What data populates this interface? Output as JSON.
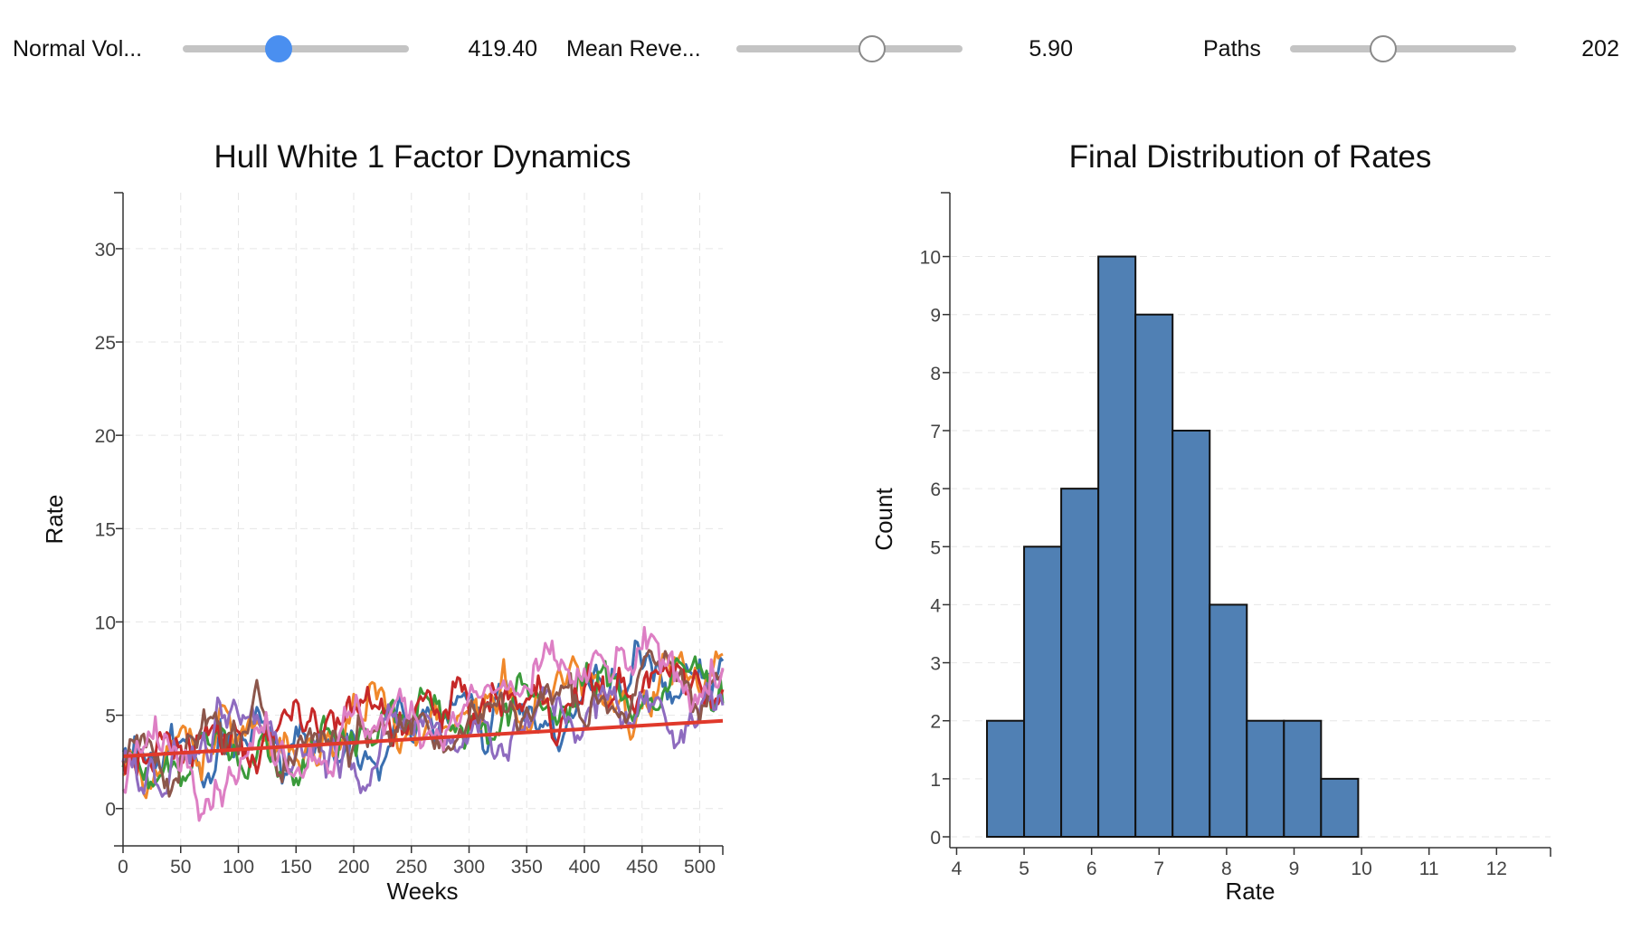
{
  "controls": [
    {
      "label": "Normal Vol...",
      "value": "419.40",
      "fraction": 0.425,
      "active": true
    },
    {
      "label": "Mean Reve...",
      "value": "5.90",
      "fraction": 0.6,
      "active": false
    },
    {
      "label": "Paths",
      "value": "202",
      "fraction": 0.41,
      "active": false
    }
  ],
  "chart_data": [
    {
      "type": "line",
      "title": "Hull White 1 Factor Dynamics",
      "xlabel": "Weeks",
      "ylabel": "Rate",
      "xlim": [
        0,
        520
      ],
      "ylim": [
        -2,
        33
      ],
      "xticks": [
        0,
        50,
        100,
        150,
        200,
        250,
        300,
        350,
        400,
        450,
        500
      ],
      "yticks": [
        0,
        5,
        10,
        15,
        20,
        25,
        30
      ],
      "grid": true,
      "mean_line": {
        "color": "#e0392b",
        "x": [
          0,
          520
        ],
        "y": [
          2.8,
          4.7
        ]
      },
      "series": [
        {
          "color": "#3a6fb0",
          "start": 2.5,
          "end": 6.5
        },
        {
          "color": "#f0882a",
          "start": 2.2,
          "end": 7.5
        },
        {
          "color": "#3a9a3a",
          "start": 3.0,
          "end": 7.2
        },
        {
          "color": "#c62828",
          "start": 2.8,
          "end": 7.2
        },
        {
          "color": "#8e6bbf",
          "start": 2.0,
          "end": 5.0
        },
        {
          "color": "#8c564b",
          "start": 3.2,
          "end": 7.5
        },
        {
          "color": "#dd7fc4",
          "start": 1.0,
          "end": 8.2
        }
      ]
    },
    {
      "type": "bar",
      "title": "Final Distribution of Rates",
      "xlabel": "Rate",
      "ylabel": "Count",
      "xlim": [
        3.9,
        12.8
      ],
      "ylim": [
        0,
        11.1
      ],
      "xticks": [
        4,
        5,
        6,
        7,
        8,
        9,
        10,
        11,
        12
      ],
      "yticks": [
        0,
        1,
        2,
        3,
        4,
        5,
        6,
        7,
        8,
        9,
        10
      ],
      "grid": true,
      "bar_color": "#5080b4",
      "bins": [
        {
          "x0": 4.45,
          "x1": 5.0,
          "count": 2
        },
        {
          "x0": 5.0,
          "x1": 5.55,
          "count": 5
        },
        {
          "x0": 5.55,
          "x1": 6.1,
          "count": 6
        },
        {
          "x0": 6.1,
          "x1": 6.65,
          "count": 10
        },
        {
          "x0": 6.65,
          "x1": 7.2,
          "count": 9
        },
        {
          "x0": 7.2,
          "x1": 7.75,
          "count": 7
        },
        {
          "x0": 7.75,
          "x1": 8.3,
          "count": 4
        },
        {
          "x0": 8.3,
          "x1": 8.85,
          "count": 2
        },
        {
          "x0": 8.85,
          "x1": 9.4,
          "count": 2
        },
        {
          "x0": 9.4,
          "x1": 9.95,
          "count": 1
        }
      ]
    }
  ]
}
